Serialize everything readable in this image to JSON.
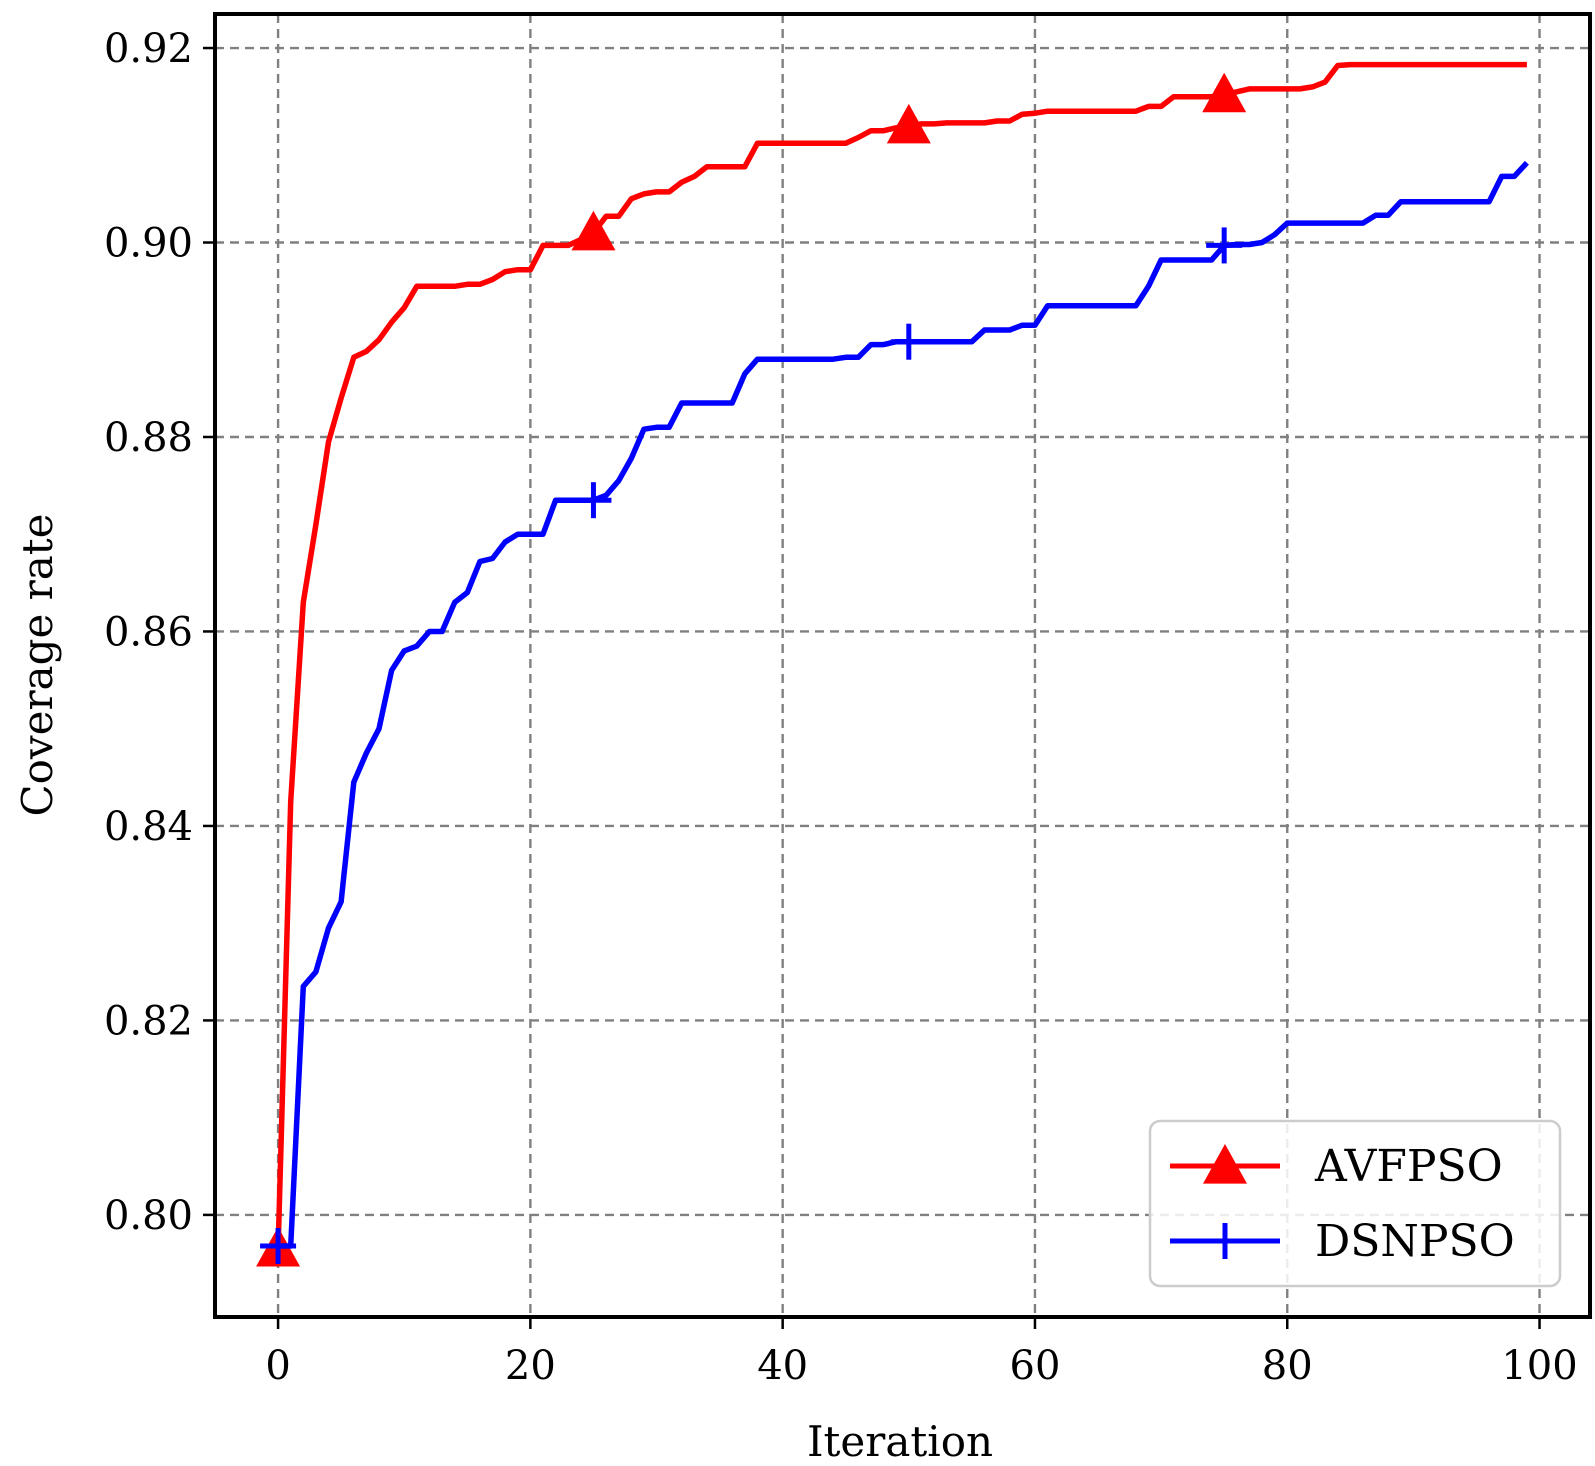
{
  "chart_data": {
    "type": "line",
    "title": "",
    "xlabel": "Iteration",
    "ylabel": "Coverage rate",
    "xlim": [
      -5,
      104
    ],
    "ylim": [
      0.7895,
      0.9235
    ],
    "xticks": [
      0,
      20,
      40,
      60,
      80,
      100
    ],
    "xtick_labels": [
      "0",
      "20",
      "40",
      "60",
      "80",
      "100"
    ],
    "yticks": [
      0.8,
      0.82,
      0.84,
      0.86,
      0.88,
      0.9,
      0.92
    ],
    "ytick_labels": [
      "0.80",
      "0.82",
      "0.84",
      "0.86",
      "0.88",
      "0.90",
      "0.92"
    ],
    "grid": true,
    "legend_position": "bottom-right",
    "x": [
      0,
      1,
      2,
      3,
      4,
      5,
      6,
      7,
      8,
      9,
      10,
      11,
      12,
      13,
      14,
      15,
      16,
      17,
      18,
      19,
      20,
      21,
      22,
      23,
      24,
      25,
      26,
      27,
      28,
      29,
      30,
      31,
      32,
      33,
      34,
      35,
      36,
      37,
      38,
      39,
      40,
      41,
      42,
      43,
      44,
      45,
      46,
      47,
      48,
      49,
      50,
      51,
      52,
      53,
      54,
      55,
      56,
      57,
      58,
      59,
      60,
      61,
      62,
      63,
      64,
      65,
      66,
      67,
      68,
      69,
      70,
      71,
      72,
      73,
      74,
      75,
      76,
      77,
      78,
      79,
      80,
      81,
      82,
      83,
      84,
      85,
      86,
      87,
      88,
      89,
      90,
      91,
      92,
      93,
      94,
      95,
      96,
      97,
      98,
      99
    ],
    "series": [
      {
        "name": "AVFPSO",
        "color": "#ff0000",
        "marker": "triangle",
        "markevery": 25,
        "values": [
          0.7965,
          0.8425,
          0.863,
          0.871,
          0.8795,
          0.884,
          0.8882,
          0.8888,
          0.89,
          0.8918,
          0.8933,
          0.8955,
          0.8955,
          0.8955,
          0.8955,
          0.8957,
          0.8957,
          0.8962,
          0.897,
          0.8972,
          0.8972,
          0.8997,
          0.8997,
          0.8997,
          0.9003,
          0.901,
          0.9027,
          0.9027,
          0.9045,
          0.905,
          0.9052,
          0.9052,
          0.9062,
          0.9068,
          0.9078,
          0.9078,
          0.9078,
          0.9078,
          0.9102,
          0.9102,
          0.9102,
          0.9102,
          0.9102,
          0.9102,
          0.9102,
          0.9102,
          0.9108,
          0.9115,
          0.9115,
          0.9118,
          0.912,
          0.9122,
          0.9122,
          0.9123,
          0.9123,
          0.9123,
          0.9123,
          0.9125,
          0.9125,
          0.9132,
          0.9133,
          0.9135,
          0.9135,
          0.9135,
          0.9135,
          0.9135,
          0.9135,
          0.9135,
          0.9135,
          0.914,
          0.914,
          0.915,
          0.915,
          0.915,
          0.915,
          0.9152,
          0.9155,
          0.9158,
          0.9158,
          0.9158,
          0.9158,
          0.9158,
          0.916,
          0.9165,
          0.9182,
          0.9183,
          0.9183,
          0.9183,
          0.9183,
          0.9183,
          0.9183,
          0.9183,
          0.9183,
          0.9183,
          0.9183,
          0.9183,
          0.9183,
          0.9183,
          0.9183,
          0.9183
        ]
      },
      {
        "name": "DSNPSO",
        "color": "#0000ff",
        "marker": "plus",
        "markevery": 25,
        "values": [
          0.7968,
          0.7968,
          0.8235,
          0.825,
          0.8295,
          0.8322,
          0.8445,
          0.8475,
          0.85,
          0.856,
          0.858,
          0.8585,
          0.86,
          0.86,
          0.863,
          0.864,
          0.8672,
          0.8675,
          0.8692,
          0.87,
          0.87,
          0.87,
          0.8735,
          0.8735,
          0.8735,
          0.8735,
          0.874,
          0.8755,
          0.8778,
          0.8808,
          0.881,
          0.881,
          0.8835,
          0.8835,
          0.8835,
          0.8835,
          0.8835,
          0.8865,
          0.888,
          0.888,
          0.888,
          0.888,
          0.888,
          0.888,
          0.888,
          0.8882,
          0.8882,
          0.8895,
          0.8895,
          0.8898,
          0.8898,
          0.8898,
          0.8898,
          0.8898,
          0.8898,
          0.8898,
          0.891,
          0.891,
          0.891,
          0.8915,
          0.8915,
          0.8935,
          0.8935,
          0.8935,
          0.8935,
          0.8935,
          0.8935,
          0.8935,
          0.8935,
          0.8955,
          0.8982,
          0.8982,
          0.8982,
          0.8982,
          0.8982,
          0.8997,
          0.8998,
          0.8998,
          0.9,
          0.9008,
          0.902,
          0.902,
          0.902,
          0.902,
          0.902,
          0.902,
          0.902,
          0.9028,
          0.9028,
          0.9042,
          0.9042,
          0.9042,
          0.9042,
          0.9042,
          0.9042,
          0.9042,
          0.9042,
          0.9068,
          0.9068,
          0.9082
        ]
      }
    ]
  }
}
